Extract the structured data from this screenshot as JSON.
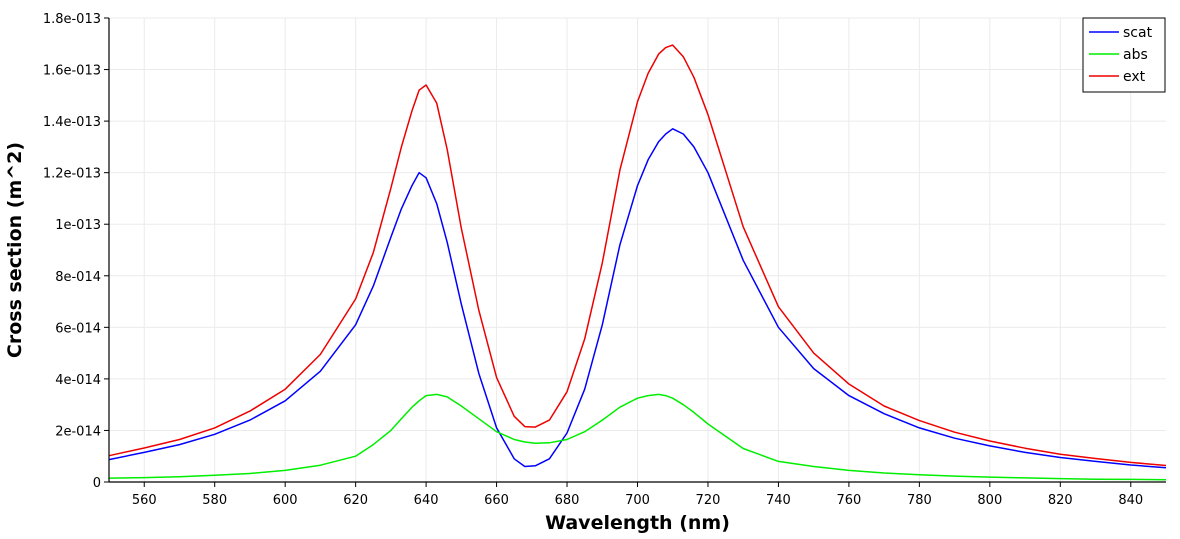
{
  "chart_data": {
    "type": "line",
    "title": "",
    "xlabel": "Wavelength (nm)",
    "ylabel": "Cross section (m^2)",
    "xlim": [
      550,
      850
    ],
    "ylim": [
      0,
      1.8e-13
    ],
    "xticks": [
      {
        "value": 560,
        "label": "560"
      },
      {
        "value": 580,
        "label": "580"
      },
      {
        "value": 600,
        "label": "600"
      },
      {
        "value": 620,
        "label": "620"
      },
      {
        "value": 640,
        "label": "640"
      },
      {
        "value": 660,
        "label": "660"
      },
      {
        "value": 680,
        "label": "680"
      },
      {
        "value": 700,
        "label": "700"
      },
      {
        "value": 720,
        "label": "720"
      },
      {
        "value": 740,
        "label": "740"
      },
      {
        "value": 760,
        "label": "760"
      },
      {
        "value": 780,
        "label": "780"
      },
      {
        "value": 800,
        "label": "800"
      },
      {
        "value": 820,
        "label": "820"
      },
      {
        "value": 840,
        "label": "840"
      }
    ],
    "yticks": [
      {
        "value": 0,
        "label": "0"
      },
      {
        "value": 2e-14,
        "label": "2e-014"
      },
      {
        "value": 4e-14,
        "label": "4e-014"
      },
      {
        "value": 6e-14,
        "label": "6e-014"
      },
      {
        "value": 8e-14,
        "label": "8e-014"
      },
      {
        "value": 1e-13,
        "label": "1e-013"
      },
      {
        "value": 1.2e-13,
        "label": "1.2e-013"
      },
      {
        "value": 1.4e-13,
        "label": "1.4e-013"
      },
      {
        "value": 1.6e-13,
        "label": "1.6e-013"
      },
      {
        "value": 1.8e-13,
        "label": "1.8e-013"
      }
    ],
    "grid": true,
    "legend_position": "top-right",
    "x": [
      550,
      560,
      570,
      580,
      590,
      600,
      610,
      620,
      625,
      630,
      633,
      636,
      638,
      640,
      643,
      646,
      650,
      655,
      660,
      665,
      668,
      671,
      675,
      680,
      685,
      690,
      695,
      700,
      703,
      706,
      708,
      710,
      713,
      716,
      720,
      730,
      740,
      750,
      760,
      770,
      780,
      790,
      800,
      810,
      820,
      830,
      840,
      850
    ],
    "series": [
      {
        "name": "scat",
        "color": "#0000ff",
        "values": [
          8.7e-15,
          1.15e-14,
          1.45e-14,
          1.85e-14,
          2.4e-14,
          3.15e-14,
          4.3e-14,
          6.1e-14,
          7.6e-14,
          9.5e-14,
          1.06e-13,
          1.15e-13,
          1.2e-13,
          1.18e-13,
          1.08e-13,
          9.3e-14,
          6.9e-14,
          4.2e-14,
          2.1e-14,
          9e-15,
          6e-15,
          6.3e-15,
          9e-15,
          1.9e-14,
          3.6e-14,
          6.1e-14,
          9.2e-14,
          1.15e-13,
          1.25e-13,
          1.32e-13,
          1.35e-13,
          1.37e-13,
          1.35e-13,
          1.3e-13,
          1.2e-13,
          8.6e-14,
          6e-14,
          4.4e-14,
          3.35e-14,
          2.65e-14,
          2.1e-14,
          1.7e-14,
          1.4e-14,
          1.15e-14,
          9.5e-15,
          8e-15,
          6.6e-15,
          5.5e-15
        ]
      },
      {
        "name": "abs",
        "color": "#00ee00",
        "values": [
          1.5e-15,
          1.7e-15,
          2e-15,
          2.6e-15,
          3.3e-15,
          4.5e-15,
          6.5e-15,
          1e-14,
          1.45e-14,
          2e-14,
          2.45e-14,
          2.9e-14,
          3.15e-14,
          3.35e-14,
          3.4e-14,
          3.3e-14,
          2.95e-14,
          2.45e-14,
          1.95e-14,
          1.65e-14,
          1.55e-14,
          1.5e-14,
          1.52e-14,
          1.65e-14,
          1.95e-14,
          2.4e-14,
          2.9e-14,
          3.25e-14,
          3.35e-14,
          3.4e-14,
          3.35e-14,
          3.25e-14,
          3e-14,
          2.7e-14,
          2.25e-14,
          1.3e-14,
          8e-15,
          6e-15,
          4.5e-15,
          3.5e-15,
          2.8e-15,
          2.3e-15,
          1.9e-15,
          1.6e-15,
          1.3e-15,
          1.1e-15,
          1e-15,
          9e-16
        ]
      },
      {
        "name": "ext",
        "color": "#ee0000",
        "values": [
          1.02e-14,
          1.32e-14,
          1.65e-14,
          2.1e-14,
          2.75e-14,
          3.6e-14,
          4.95e-14,
          7.1e-14,
          8.9e-14,
          1.14e-13,
          1.3e-13,
          1.44e-13,
          1.52e-13,
          1.54e-13,
          1.47e-13,
          1.29e-13,
          9.85e-14,
          6.65e-14,
          4.05e-14,
          2.55e-14,
          2.15e-14,
          2.13e-14,
          2.4e-14,
          3.5e-14,
          5.55e-14,
          8.5e-14,
          1.21e-13,
          1.475e-13,
          1.585e-13,
          1.66e-13,
          1.685e-13,
          1.695e-13,
          1.65e-13,
          1.57e-13,
          1.425e-13,
          9.9e-14,
          6.8e-14,
          5e-14,
          3.8e-14,
          2.95e-14,
          2.38e-14,
          1.93e-14,
          1.59e-14,
          1.31e-14,
          1.08e-14,
          9.1e-15,
          7.6e-15,
          6.4e-15
        ]
      }
    ]
  }
}
